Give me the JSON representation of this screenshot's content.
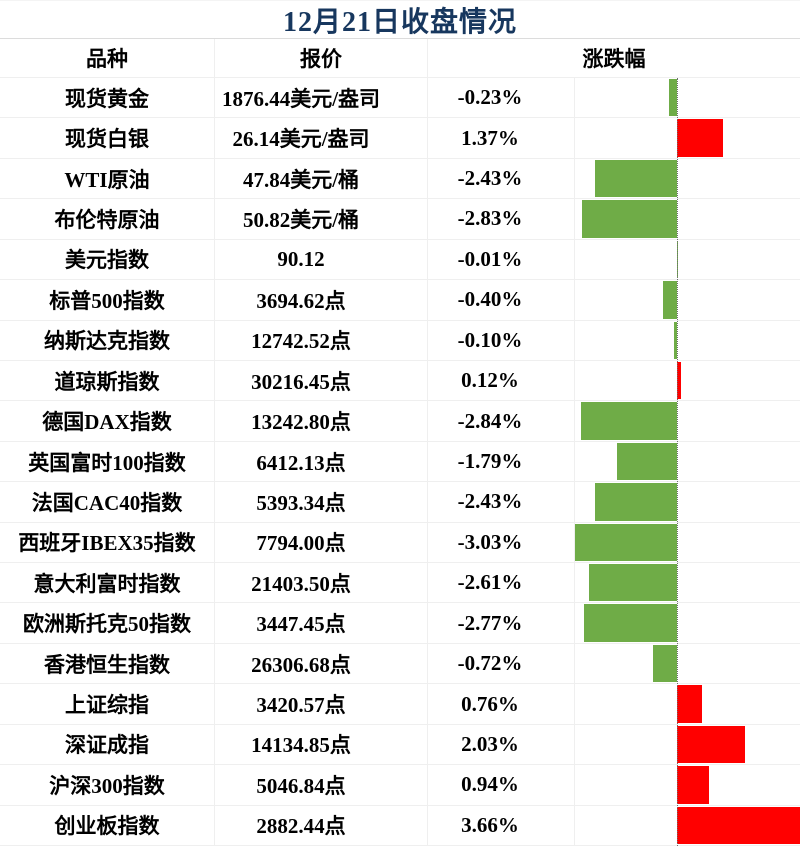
{
  "title": "12月21日收盘情况",
  "columns": {
    "name": "品种",
    "quote": "报价",
    "change": "涨跌幅"
  },
  "colors": {
    "title": "#17375E",
    "up": "#FF0000",
    "down": "#6FAC47",
    "border": "#EFEFEF",
    "axis": "#6E6E6E"
  },
  "chart_data": {
    "type": "bar",
    "orientation": "horizontal",
    "title": "12月21日收盘情况",
    "legend": false,
    "grid": false,
    "xlim": [
      -3.03,
      3.66
    ],
    "positive_color": "#FF0000",
    "negative_color": "#6FAC47",
    "categories": [
      "现货黄金",
      "现货白银",
      "WTI原油",
      "布伦特原油",
      "美元指数",
      "标普500指数",
      "纳斯达克指数",
      "道琼斯指数",
      "德国DAX指数",
      "英国富时100指数",
      "法国CAC40指数",
      "西班牙IBEX35指数",
      "意大利富时指数",
      "欧洲斯托克50指数",
      "香港恒生指数",
      "上证综指",
      "深证成指",
      "沪深300指数",
      "创业板指数"
    ],
    "quotes": [
      "1876.44美元/盎司",
      "26.14美元/盎司",
      "47.84美元/桶",
      "50.82美元/桶",
      "90.12",
      "3694.62点",
      "12742.52点",
      "30216.45点",
      "13242.80点",
      "6412.13点",
      "5393.34点",
      "7794.00点",
      "21403.50点",
      "3447.45点",
      "26306.68点",
      "3420.57点",
      "14134.85点",
      "5046.84点",
      "2882.44点"
    ],
    "value_labels": [
      "-0.23%",
      "1.37%",
      "-2.43%",
      "-2.83%",
      "-0.01%",
      "-0.40%",
      "-0.10%",
      "0.12%",
      "-2.84%",
      "-1.79%",
      "-2.43%",
      "-3.03%",
      "-2.61%",
      "-2.77%",
      "-0.72%",
      "0.76%",
      "2.03%",
      "0.94%",
      "3.66%"
    ],
    "values": [
      -0.23,
      1.37,
      -2.43,
      -2.83,
      -0.01,
      -0.4,
      -0.1,
      0.12,
      -2.84,
      -1.79,
      -2.43,
      -3.03,
      -2.61,
      -2.77,
      -0.72,
      0.76,
      2.03,
      0.94,
      3.66
    ]
  }
}
